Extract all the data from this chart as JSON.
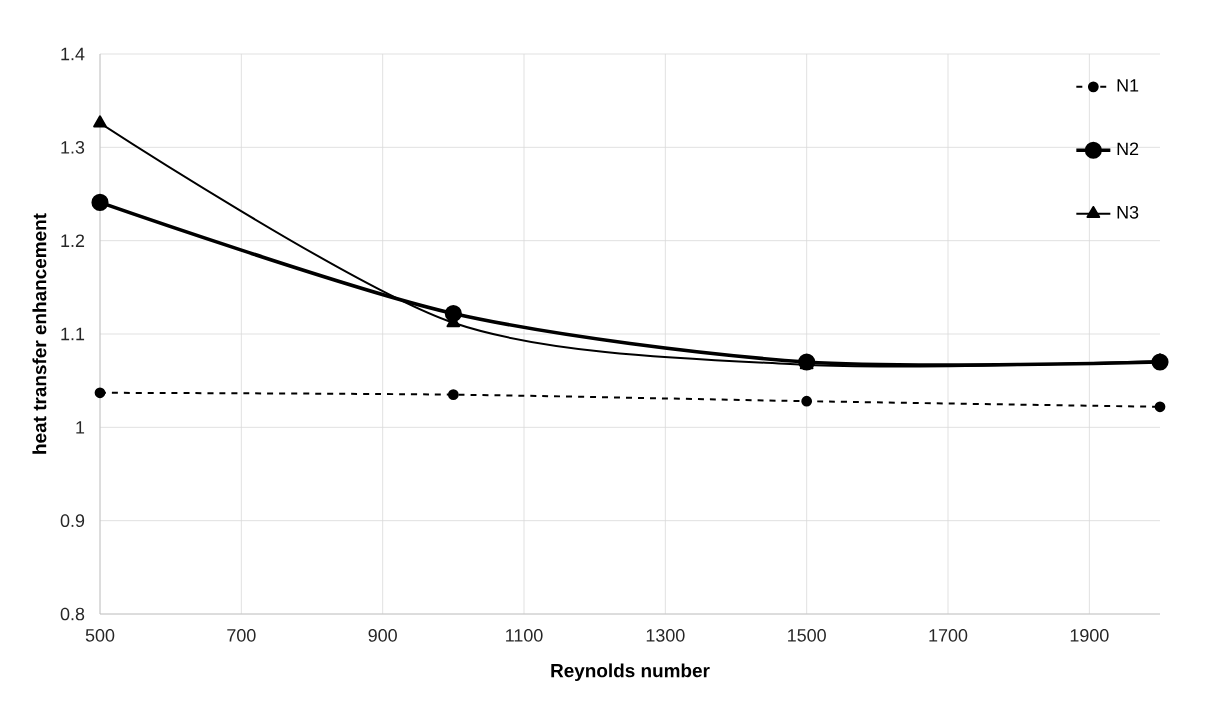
{
  "chart_data": {
    "type": "line",
    "xlabel": "Reynolds number",
    "ylabel": "heat transfer enhancement",
    "x": [
      500,
      1000,
      1500,
      2000
    ],
    "series": [
      {
        "name": "N1",
        "color": "#000000",
        "values": [
          1.037,
          1.035,
          1.028,
          1.022
        ],
        "marker": "circle",
        "line_style": "dashed"
      },
      {
        "name": "N2",
        "color": "#000000",
        "values": [
          1.241,
          1.122,
          1.07,
          1.07
        ],
        "marker": "circle",
        "line_style": "solid"
      },
      {
        "name": "N3",
        "color": "#000000",
        "values": [
          1.326,
          1.112,
          1.067,
          1.071
        ],
        "marker": "triangle",
        "line_style": "solid"
      }
    ],
    "xlim": [
      500,
      2000
    ],
    "xticks": [
      500,
      700,
      900,
      1100,
      1300,
      1500,
      1700,
      1900
    ],
    "ylim": [
      0.8,
      1.4
    ],
    "yticks": [
      0.8,
      0.9,
      1,
      1.1,
      1.2,
      1.3,
      1.4
    ],
    "grid": true,
    "legend": "top right"
  }
}
